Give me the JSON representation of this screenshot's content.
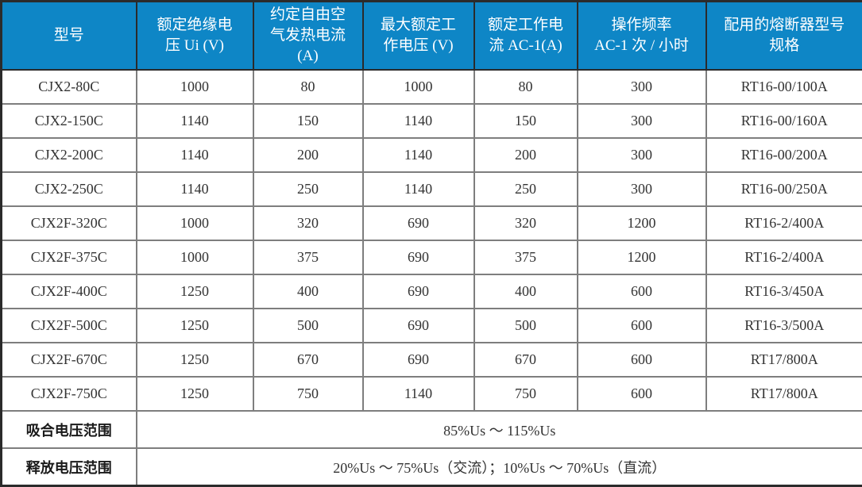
{
  "colors": {
    "header_bg": "#0e86c6",
    "header_text": "#ffffff",
    "body_text": "#333333",
    "grid_line": "#7e7e7e",
    "frame_line": "#2b2b2b"
  },
  "table": {
    "columns": [
      {
        "label": "型号"
      },
      {
        "label": "额定绝缘电\n压 Ui (V)"
      },
      {
        "label": "约定自由空\n气发热电流\n(A)"
      },
      {
        "label": "最大额定工\n作电压 (V)"
      },
      {
        "label": "额定工作电\n流 AC-1(A)"
      },
      {
        "label": "操作频率\nAC-1 次 / 小时"
      },
      {
        "label": "配用的熔断器型号\n规格"
      }
    ],
    "rows": [
      [
        "CJX2-80C",
        "1000",
        "80",
        "1000",
        "80",
        "300",
        "RT16-00/100A"
      ],
      [
        "CJX2-150C",
        "1140",
        "150",
        "1140",
        "150",
        "300",
        "RT16-00/160A"
      ],
      [
        "CJX2-200C",
        "1140",
        "200",
        "1140",
        "200",
        "300",
        "RT16-00/200A"
      ],
      [
        "CJX2-250C",
        "1140",
        "250",
        "1140",
        "250",
        "300",
        "RT16-00/250A"
      ],
      [
        "CJX2F-320C",
        "1000",
        "320",
        "690",
        "320",
        "1200",
        "RT16-2/400A"
      ],
      [
        "CJX2F-375C",
        "1000",
        "375",
        "690",
        "375",
        "1200",
        "RT16-2/400A"
      ],
      [
        "CJX2F-400C",
        "1250",
        "400",
        "690",
        "400",
        "600",
        "RT16-3/450A"
      ],
      [
        "CJX2F-500C",
        "1250",
        "500",
        "690",
        "500",
        "600",
        "RT16-3/500A"
      ],
      [
        "CJX2F-670C",
        "1250",
        "670",
        "690",
        "670",
        "600",
        "RT17/800A"
      ],
      [
        "CJX2F-750C",
        "1250",
        "750",
        "1140",
        "750",
        "600",
        "RT17/800A"
      ]
    ],
    "footer_rows": [
      {
        "label": "吸合电压范围",
        "value": "85%Us ～ 115%Us"
      },
      {
        "label": "释放电压范围",
        "value": "20%Us ～ 75%Us（交流）；10%Us ～ 70%Us（直流）"
      }
    ]
  }
}
